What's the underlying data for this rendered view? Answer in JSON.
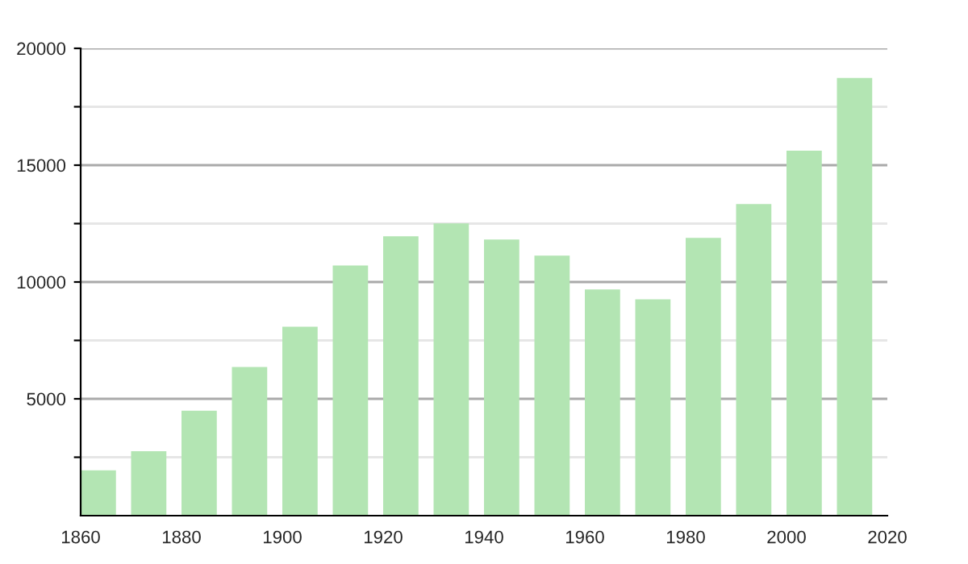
{
  "chart_data": {
    "type": "bar",
    "x": [
      1863.5,
      1873.5,
      1883.5,
      1893.5,
      1903.5,
      1913.5,
      1923.5,
      1933.5,
      1943.5,
      1953.5,
      1963.5,
      1973.5,
      1983.5,
      1993.5,
      2003.5,
      2013.5
    ],
    "values": [
      1940,
      2760,
      4490,
      6360,
      8090,
      10710,
      11960,
      12510,
      11820,
      11130,
      9680,
      9260,
      11890,
      13340,
      15620,
      18730
    ],
    "color": "#b3e5b3",
    "xlim": [
      1860,
      2020
    ],
    "xticks": [
      1860,
      1880,
      1900,
      1920,
      1940,
      1960,
      1980,
      2000,
      2020
    ],
    "ylim": [
      0,
      20000
    ],
    "yticks": [
      {
        "value": 2500,
        "label": null
      },
      5000,
      {
        "value": 7500,
        "label": null
      },
      10000,
      {
        "value": 12500,
        "label": null
      },
      15000,
      {
        "value": 17500,
        "label": null
      },
      20000
    ],
    "grid": "y"
  }
}
